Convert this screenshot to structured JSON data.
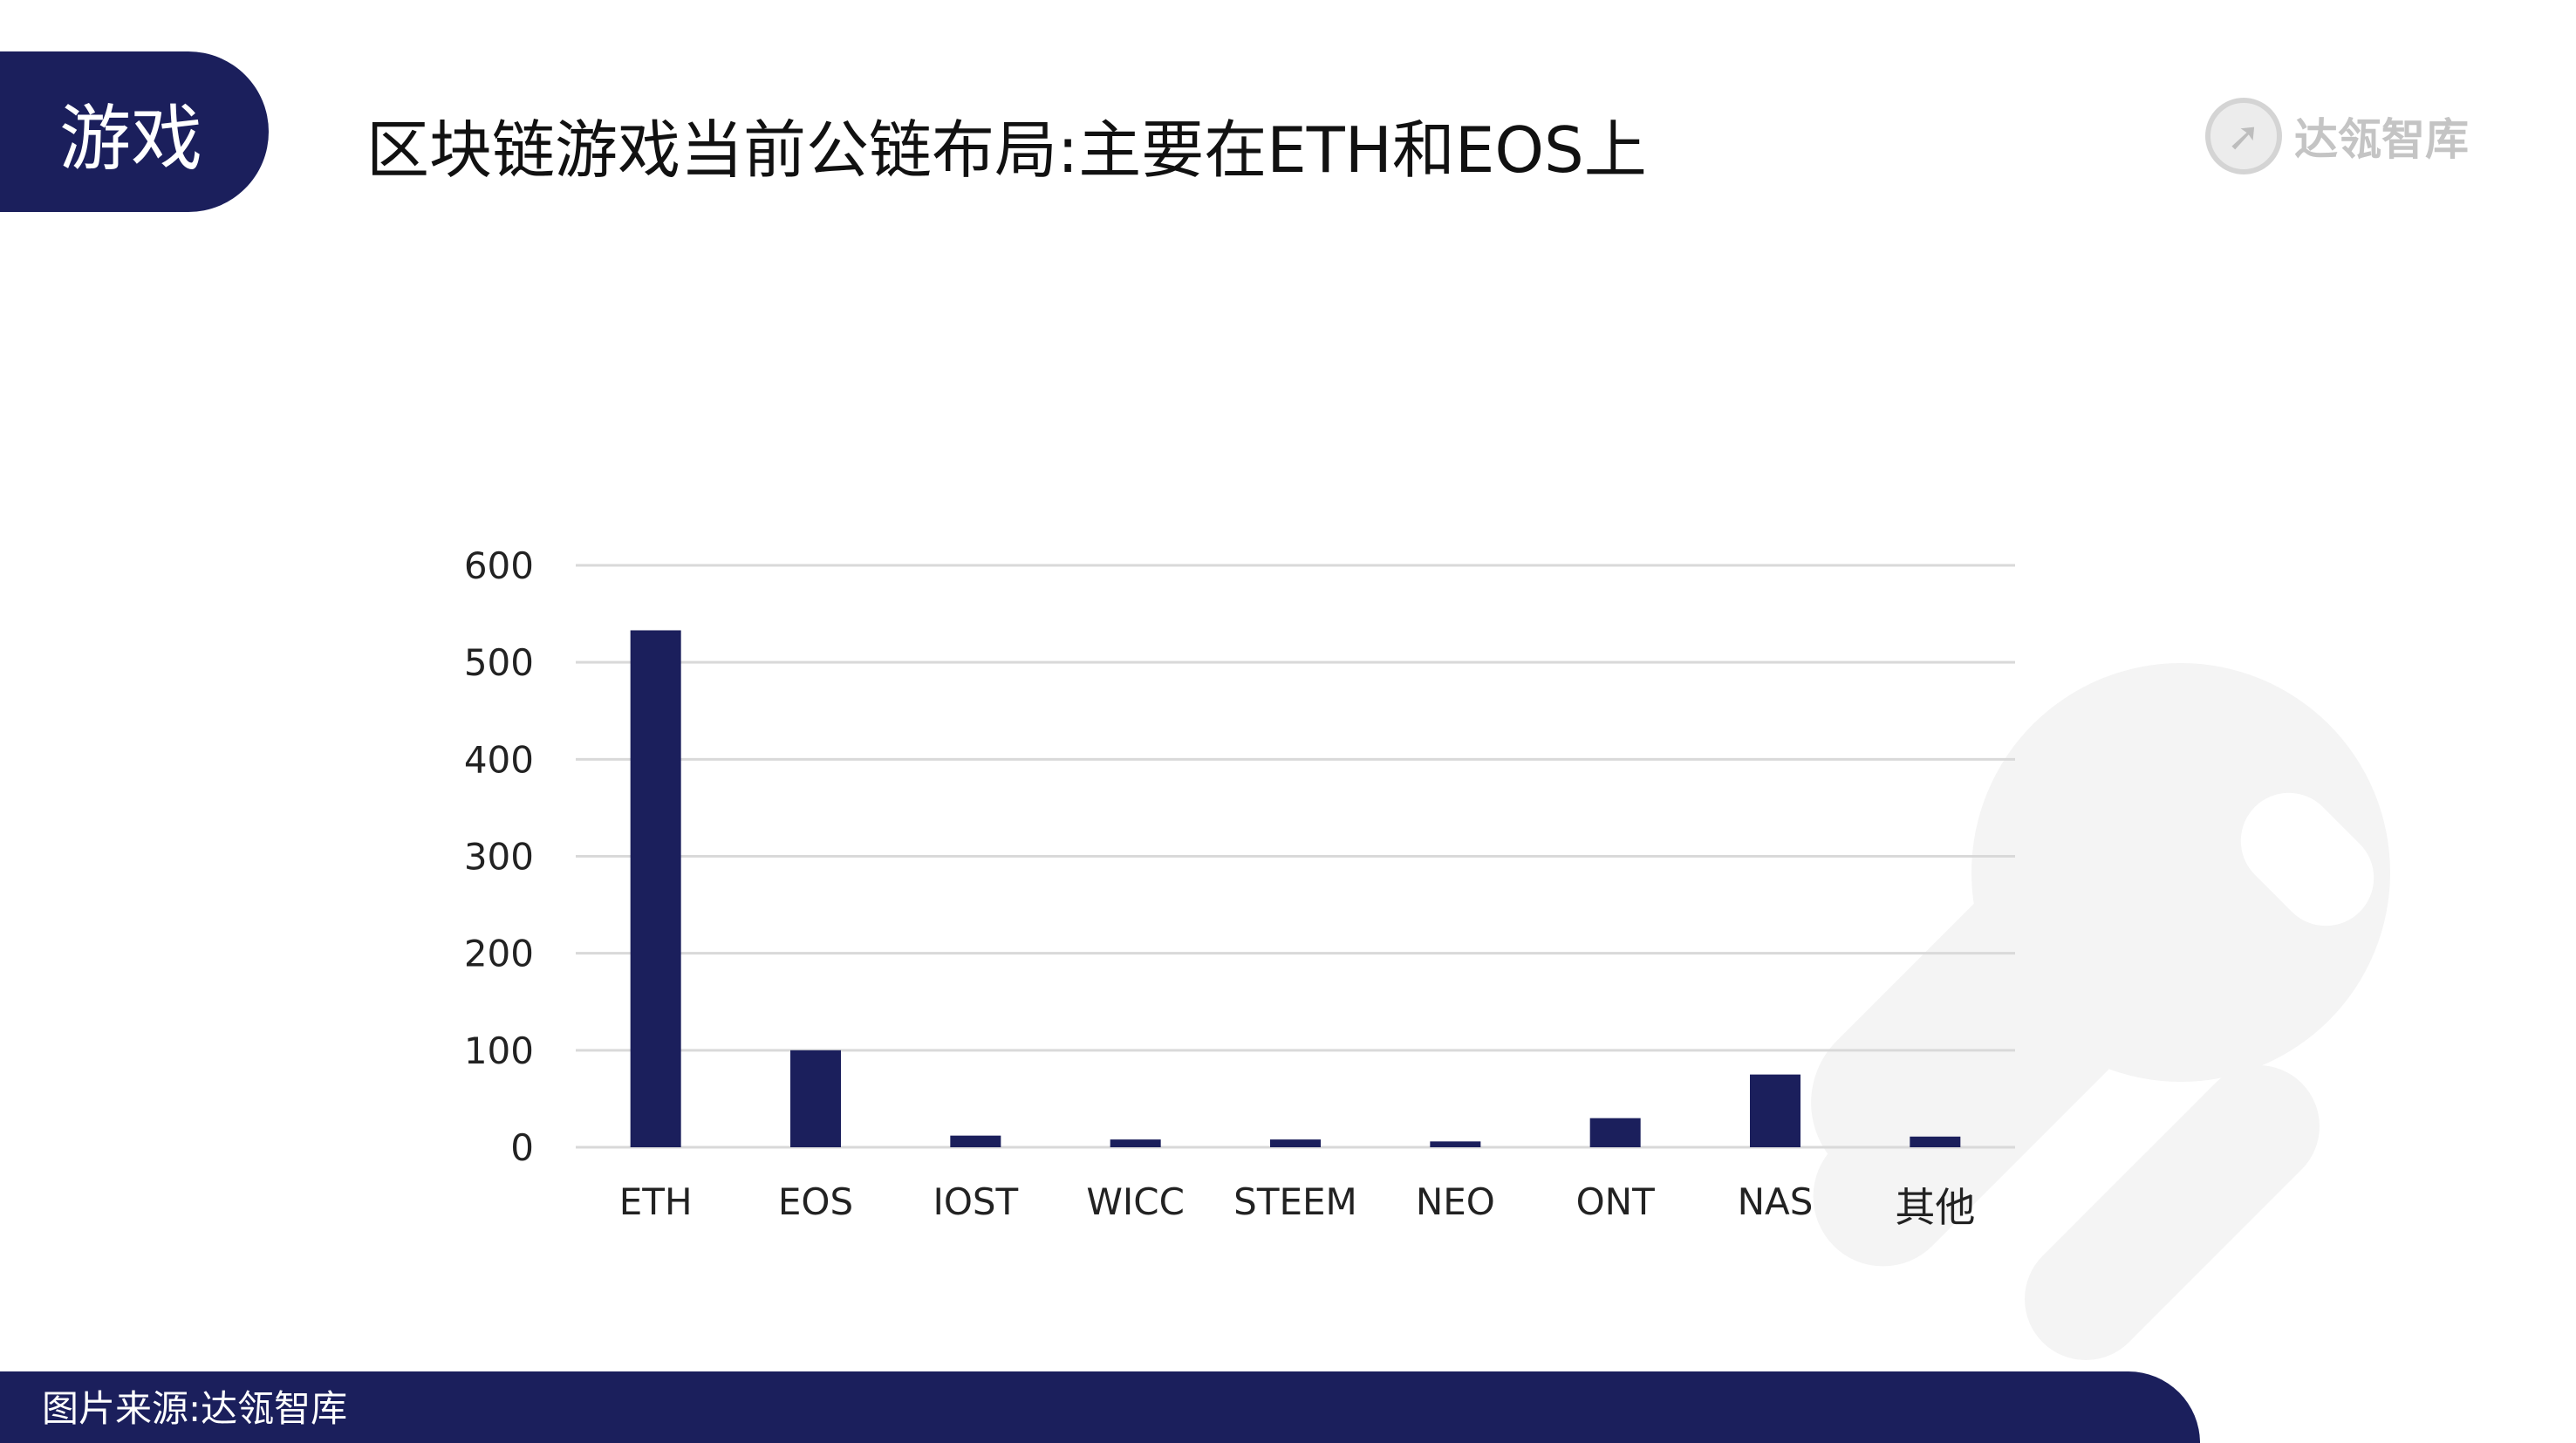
{
  "section_tag": "游戏",
  "title": "区块链游戏当前公链布局:主要在ETH和EOS上",
  "logo": {
    "text": "达瓴智库",
    "icon": "rocket-icon"
  },
  "source": "图片来源:达瓴智库",
  "colors": {
    "navy": "#1b1f5c",
    "bar": "#1b1f5c",
    "grid": "#d9d9d9",
    "watermark": "#f4f4f4"
  },
  "chart_data": {
    "type": "bar",
    "categories": [
      "ETH",
      "EOS",
      "IOST",
      "WICC",
      "STEEM",
      "NEO",
      "ONT",
      "NAS",
      "其他"
    ],
    "values": [
      533,
      100,
      12,
      8,
      8,
      6,
      30,
      75,
      11
    ],
    "title": "",
    "xlabel": "",
    "ylabel": "",
    "ylim": [
      0,
      600
    ],
    "yticks": [
      0,
      100,
      200,
      300,
      400,
      500,
      600
    ],
    "grid": true,
    "legend": "none"
  }
}
